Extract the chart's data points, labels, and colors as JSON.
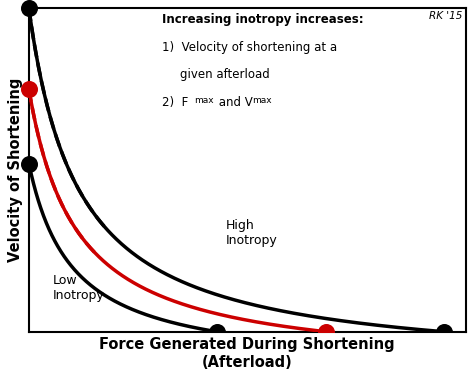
{
  "xlabel": "Force Generated During Shortening\n(Afterload)",
  "ylabel": "Velocity of Shortening",
  "background_color": "#ffffff",
  "watermark": "RK '15",
  "low_label": "Low\nInotropy",
  "high_label": "High\nInotropy",
  "black_color": "#000000",
  "red_color": "#cc0000",
  "xmax": 10,
  "ymax": 10,
  "vmax_low": 5.2,
  "fmax_low": 4.3,
  "vmax_high": 10.0,
  "fmax_high": 9.5,
  "vmax_red": 7.5,
  "fmax_red": 6.8,
  "hill_a_low": 1.2,
  "hill_a_high": 1.2,
  "hill_a_red": 1.2,
  "dash_extend_low": 1.8,
  "dash_extend_red": 1.5
}
